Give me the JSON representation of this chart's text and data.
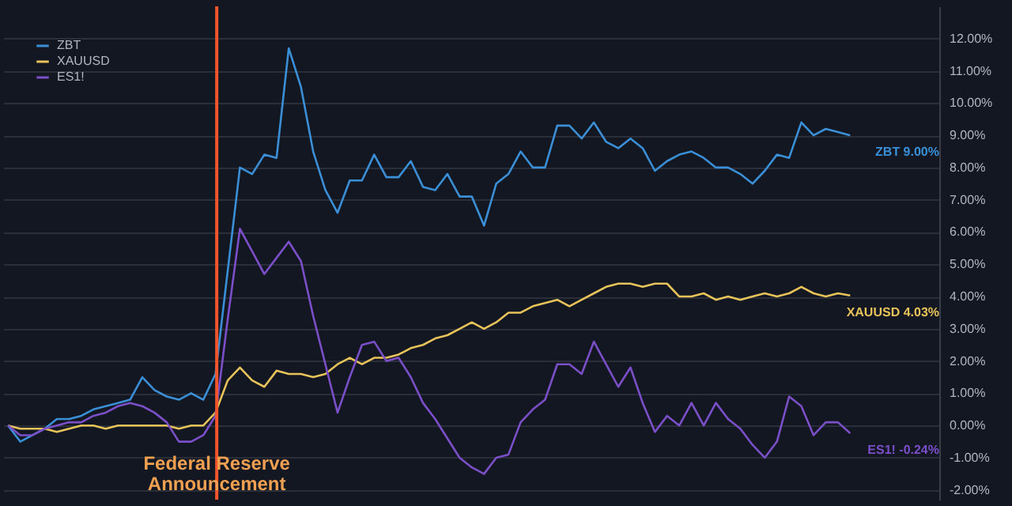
{
  "chart_data": {
    "type": "line",
    "categories": [
      null,
      null,
      null,
      null,
      null,
      null,
      null,
      null,
      null,
      null,
      null,
      null,
      null,
      null,
      null,
      null,
      null,
      null,
      null,
      null,
      null,
      null,
      null,
      null,
      null,
      null,
      null,
      null,
      null,
      null,
      null,
      null,
      null,
      null,
      null,
      null,
      null,
      null,
      null,
      null,
      null,
      null,
      null,
      null,
      null,
      null,
      null,
      null,
      null,
      null,
      null,
      null,
      null,
      null,
      null,
      null,
      null,
      null,
      null,
      null,
      null,
      null,
      null,
      null,
      null,
      null,
      null,
      null,
      null,
      null
    ],
    "ylim": [
      -2.3,
      13
    ],
    "yticks": [
      {
        "value": -2,
        "label": "-2.00%"
      },
      {
        "value": -1,
        "label": "-1.00%"
      },
      {
        "value": 0,
        "label": "0.00%"
      },
      {
        "value": 1,
        "label": "1.00%"
      },
      {
        "value": 2,
        "label": "2.00%"
      },
      {
        "value": 3,
        "label": "3.00%"
      },
      {
        "value": 4,
        "label": "4.00%"
      },
      {
        "value": 5,
        "label": "5.00%"
      },
      {
        "value": 6,
        "label": "6.00%"
      },
      {
        "value": 7,
        "label": "7.00%"
      },
      {
        "value": 8,
        "label": "8.00%"
      },
      {
        "value": 9,
        "label": "9.00%"
      },
      {
        "value": 10,
        "label": "10.00%"
      },
      {
        "value": 11,
        "label": "11.00%"
      },
      {
        "value": 12,
        "label": "12.00%"
      }
    ],
    "tick_labels": "y",
    "grid": "y",
    "legend": "top left",
    "series": [
      {
        "name": "ZBT",
        "color": "#3a8fd6",
        "values": [
          0.0,
          -0.5,
          -0.3,
          -0.1,
          0.2,
          0.2,
          0.3,
          0.5,
          0.6,
          0.7,
          0.8,
          1.5,
          1.1,
          0.9,
          0.8,
          1.0,
          0.8,
          1.6,
          4.8,
          8.0,
          7.8,
          8.4,
          8.3,
          11.7,
          10.5,
          8.5,
          7.3,
          6.6,
          7.6,
          7.6,
          8.4,
          7.7,
          7.7,
          8.2,
          7.4,
          7.3,
          7.8,
          7.1,
          7.1,
          6.2,
          7.5,
          7.8,
          8.5,
          8.0,
          8.0,
          9.3,
          9.3,
          8.9,
          9.4,
          8.8,
          8.6,
          8.9,
          8.6,
          7.9,
          8.2,
          8.4,
          8.5,
          8.3,
          8.0,
          8.0,
          7.8,
          7.5,
          7.9,
          8.4,
          8.3,
          9.4,
          9.0,
          9.2,
          9.1,
          9.0
        ],
        "value_labels": [
          null,
          null,
          null,
          null,
          null,
          null,
          null,
          null,
          null,
          null,
          null,
          null,
          null,
          null,
          null,
          null,
          null,
          null,
          null,
          null,
          null,
          null,
          null,
          null,
          null,
          null,
          null,
          null,
          null,
          null,
          null,
          null,
          null,
          null,
          null,
          null,
          null,
          null,
          null,
          null,
          null,
          null,
          null,
          null,
          null,
          null,
          null,
          null,
          null,
          null,
          null,
          null,
          null,
          null,
          null,
          null,
          null,
          null,
          null,
          null,
          null,
          null,
          null,
          null,
          null,
          null,
          null,
          null,
          null,
          "9.00%"
        ]
      },
      {
        "name": "XAUUSD",
        "color": "#e8c35a",
        "values": [
          0.0,
          -0.1,
          -0.1,
          -0.1,
          -0.2,
          -0.1,
          0.0,
          0.0,
          -0.1,
          0.0,
          0.0,
          0.0,
          0.0,
          0.0,
          -0.1,
          0.0,
          0.0,
          0.4,
          1.4,
          1.8,
          1.4,
          1.2,
          1.7,
          1.6,
          1.6,
          1.5,
          1.6,
          1.9,
          2.1,
          1.9,
          2.1,
          2.1,
          2.2,
          2.4,
          2.5,
          2.7,
          2.8,
          3.0,
          3.2,
          3.0,
          3.2,
          3.5,
          3.5,
          3.7,
          3.8,
          3.9,
          3.7,
          3.9,
          4.1,
          4.3,
          4.4,
          4.4,
          4.3,
          4.4,
          4.4,
          4.0,
          4.0,
          4.1,
          3.9,
          4.0,
          3.9,
          4.0,
          4.1,
          4.0,
          4.1,
          4.3,
          4.1,
          4.0,
          4.1,
          4.03
        ],
        "value_labels": [
          null,
          null,
          null,
          null,
          null,
          null,
          null,
          null,
          null,
          null,
          null,
          null,
          null,
          null,
          null,
          null,
          null,
          null,
          null,
          null,
          null,
          null,
          null,
          null,
          null,
          null,
          null,
          null,
          null,
          null,
          null,
          null,
          null,
          null,
          null,
          null,
          null,
          null,
          null,
          null,
          null,
          null,
          null,
          null,
          null,
          null,
          null,
          null,
          null,
          null,
          null,
          null,
          null,
          null,
          null,
          null,
          null,
          null,
          null,
          null,
          null,
          null,
          null,
          null,
          null,
          null,
          null,
          null,
          null,
          "4.03%"
        ]
      },
      {
        "name": "ES1!",
        "color": "#7b4fc8",
        "values": [
          0.0,
          -0.3,
          -0.3,
          -0.1,
          0.0,
          0.1,
          0.1,
          0.3,
          0.4,
          0.6,
          0.7,
          0.6,
          0.4,
          0.1,
          -0.5,
          -0.5,
          -0.3,
          0.3,
          3.3,
          6.1,
          5.4,
          4.7,
          5.2,
          5.7,
          5.1,
          3.4,
          1.9,
          0.4,
          1.5,
          2.5,
          2.6,
          2.0,
          2.1,
          1.5,
          0.7,
          0.2,
          -0.4,
          -1.0,
          -1.3,
          -1.5,
          -1.0,
          -0.9,
          0.1,
          0.5,
          0.8,
          1.9,
          1.9,
          1.6,
          2.6,
          1.9,
          1.2,
          1.8,
          0.7,
          -0.2,
          0.3,
          0.0,
          0.7,
          0.0,
          0.7,
          0.2,
          -0.1,
          -0.6,
          -1.0,
          -0.5,
          0.9,
          0.6,
          -0.3,
          0.1,
          0.1,
          -0.24
        ],
        "value_labels": [
          null,
          null,
          null,
          null,
          null,
          null,
          null,
          null,
          null,
          null,
          null,
          null,
          null,
          null,
          null,
          null,
          null,
          null,
          null,
          null,
          null,
          null,
          null,
          null,
          null,
          null,
          null,
          null,
          null,
          null,
          null,
          null,
          null,
          null,
          null,
          null,
          null,
          null,
          null,
          null,
          null,
          null,
          null,
          null,
          null,
          null,
          null,
          null,
          null,
          null,
          null,
          null,
          null,
          null,
          null,
          null,
          null,
          null,
          null,
          null,
          null,
          null,
          null,
          null,
          null,
          null,
          null,
          null,
          null,
          "-0.24%"
        ]
      }
    ],
    "annotations": [
      "Federal Reserve Announcement"
    ]
  }
}
